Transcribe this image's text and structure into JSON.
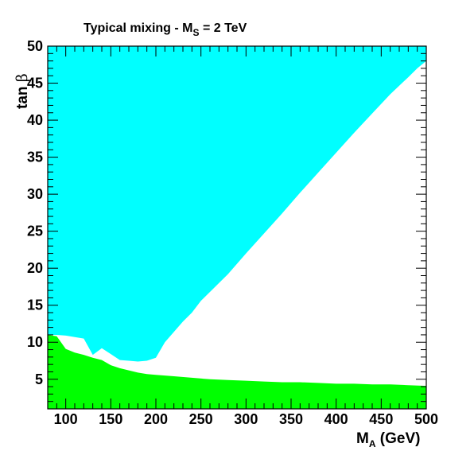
{
  "chart_data": {
    "type": "area",
    "title": {
      "main": "Typical mixing - M",
      "sub": "S",
      "rest": " = 2 TeV"
    },
    "xlabel": {
      "main": "M",
      "sub": "A",
      "rest": " (GeV)"
    },
    "ylabel": {
      "main": "tan ",
      "greek": "β"
    },
    "xlim": [
      80,
      500
    ],
    "ylim": [
      1,
      50
    ],
    "xticks": [
      100,
      150,
      200,
      250,
      300,
      350,
      400,
      450,
      500
    ],
    "yticks": [
      5,
      10,
      15,
      20,
      25,
      30,
      35,
      40,
      45,
      50
    ],
    "grid": false,
    "colors": {
      "upper_region": "#00ffff",
      "lower_region": "#00ff00",
      "background": "#ffffff"
    },
    "series": [
      {
        "fill_color": "#00ffff",
        "x": [
          80,
          80,
          500,
          500,
          490,
          480,
          460,
          440,
          420,
          400,
          380,
          360,
          340,
          320,
          300,
          280,
          260,
          250,
          240,
          230,
          220,
          210,
          200,
          190,
          180,
          170,
          160,
          150,
          140,
          130,
          120,
          110,
          100,
          90,
          80
        ],
        "y": [
          11.0,
          50,
          50,
          48.0,
          47.0,
          45.8,
          43.5,
          40.9,
          38.3,
          35.6,
          32.9,
          30.2,
          27.4,
          24.7,
          22.0,
          19.2,
          16.8,
          15.6,
          14.0,
          12.8,
          11.4,
          10.0,
          7.9,
          7.5,
          7.4,
          7.5,
          7.6,
          8.4,
          9.2,
          8.3,
          10.5,
          10.7,
          10.9,
          11.0,
          11.0
        ]
      },
      {
        "fill_color": "#00ff00",
        "x": [
          80,
          80,
          90,
          100,
          110,
          120,
          130,
          140,
          150,
          160,
          170,
          180,
          190,
          200,
          220,
          240,
          260,
          280,
          300,
          320,
          340,
          360,
          380,
          400,
          420,
          440,
          460,
          480,
          500,
          500
        ],
        "y": [
          1,
          11.0,
          10.8,
          9.1,
          8.6,
          8.3,
          7.9,
          7.6,
          6.9,
          6.5,
          6.2,
          5.9,
          5.7,
          5.6,
          5.4,
          5.2,
          5.0,
          4.9,
          4.8,
          4.7,
          4.6,
          4.6,
          4.5,
          4.4,
          4.4,
          4.3,
          4.3,
          4.2,
          4.1,
          1
        ]
      }
    ]
  }
}
